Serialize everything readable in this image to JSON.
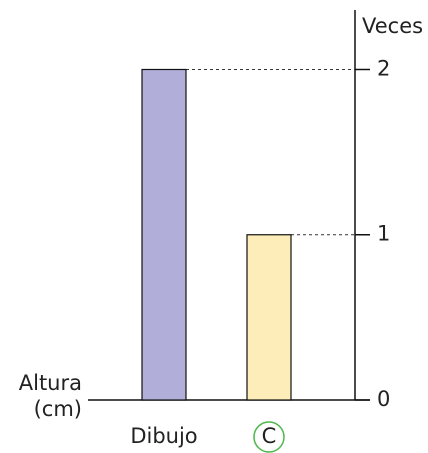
{
  "chart_data": {
    "type": "bar",
    "categories": [
      "Dibujo",
      "C"
    ],
    "values": [
      2,
      1
    ],
    "colors": [
      "#b1afd9",
      "#fdeeb9"
    ],
    "ylabel": "Veces",
    "xlabel": [
      "Altura",
      "(cm)"
    ],
    "ylim": [
      0,
      2.36
    ],
    "yticks": [
      0,
      1,
      2
    ],
    "guide_lines": "dashed"
  }
}
